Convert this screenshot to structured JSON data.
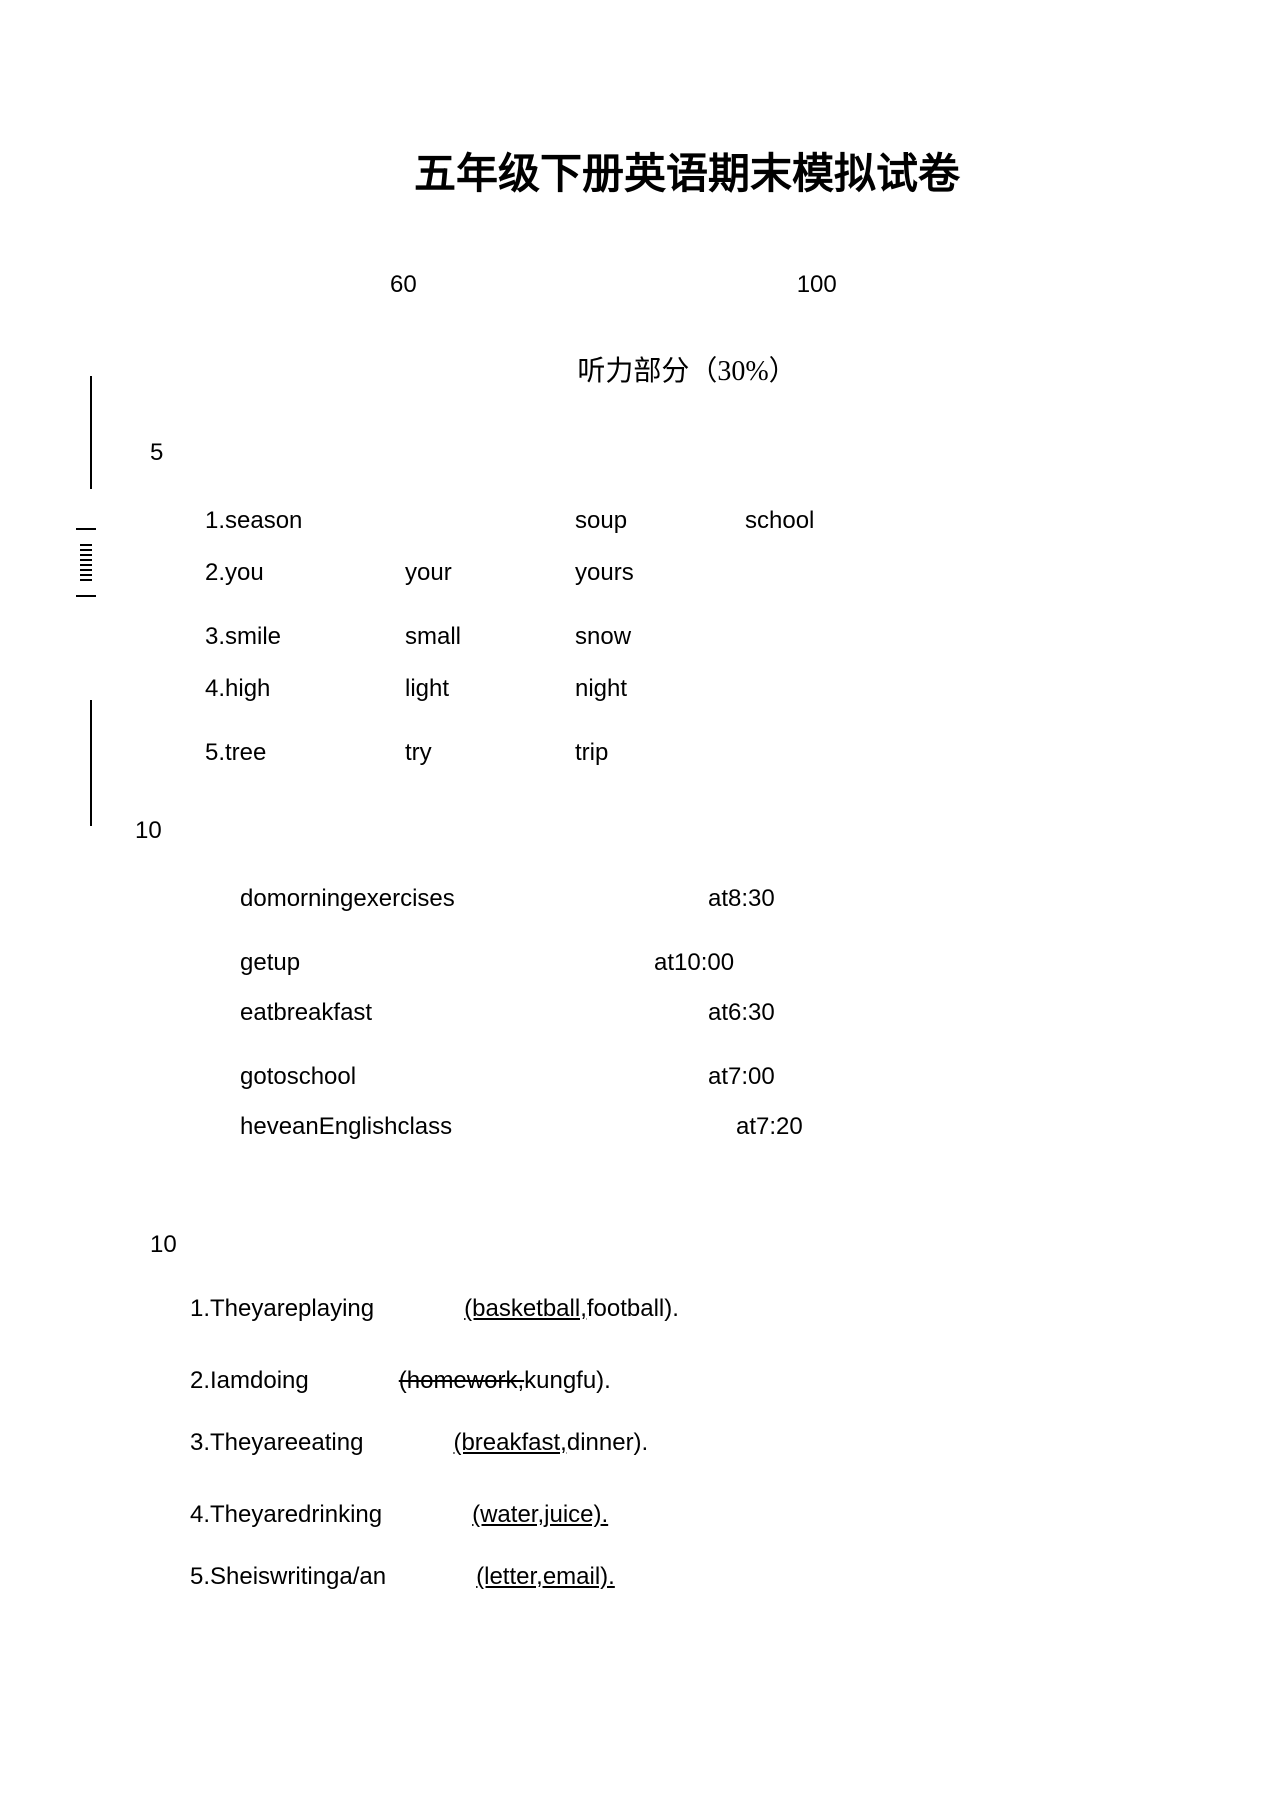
{
  "title": "五年级下册英语期末模拟试卷",
  "meta": {
    "duration": "60",
    "total": "100"
  },
  "subtitle": "听力部分（30%）",
  "section1_num": "5",
  "q1": {
    "rows": [
      {
        "c1": "1.season",
        "c2": "",
        "c3": "soup",
        "c4": "school"
      },
      {
        "c1": "2.you",
        "c2": "your",
        "c3": "yours",
        "c4": ""
      },
      {
        "c1": "3.smile",
        "c2": "small",
        "c3": "snow",
        "c4": ""
      },
      {
        "c1": "4.high",
        "c2": "light",
        "c3": "night",
        "c4": ""
      },
      {
        "c1": "5.tree",
        "c2": "try",
        "c3": "trip",
        "c4": ""
      }
    ]
  },
  "section2_num": "10",
  "q2": {
    "rows": [
      {
        "left": "domorningexercises",
        "right": "at8:30"
      },
      {
        "left": "getup",
        "right": "at10:00"
      },
      {
        "left": "eatbreakfast",
        "right": "at6:30"
      },
      {
        "left": "gotoschool",
        "right": "at7:00"
      },
      {
        "left": "heveanEnglishclass",
        "right": "at7:20"
      }
    ]
  },
  "section3_num": "10",
  "q3": {
    "items": [
      {
        "num": "1.",
        "prefix": "Theyareplaying",
        "strike": "",
        "underline": "(basketball,",
        "rest": "football)."
      },
      {
        "num": "2.",
        "prefix": "Iamdoing",
        "strike": "(homework,",
        "underline": "",
        "rest": "kungfu)."
      },
      {
        "num": "3.",
        "prefix": "Theyareeating",
        "strike": "",
        "underline": "(breakfast,",
        "rest": "dinner)."
      },
      {
        "num": "4.",
        "prefix": "Theyaredrinking",
        "strike": "",
        "underline": "(water,juice).",
        "rest": ""
      },
      {
        "num": "5.",
        "prefix": "Sheiswritinga/an",
        "strike": "",
        "underline": "(letter,email).",
        "rest": ""
      }
    ]
  }
}
